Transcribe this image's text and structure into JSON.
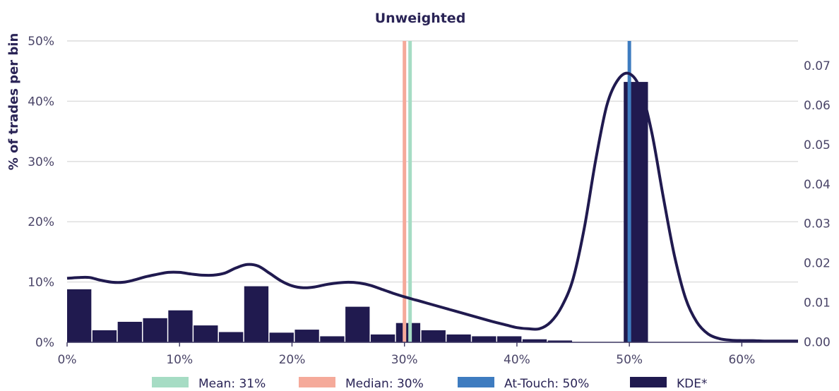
{
  "chart_data": {
    "type": "bar",
    "title": "Unweighted",
    "ylabel": "% of trades per bin",
    "xlim": [
      0,
      65
    ],
    "ylim": [
      0,
      50
    ],
    "y2lim": [
      -0.00013,
      0.0763
    ],
    "x_ticks": [
      0,
      10,
      20,
      30,
      40,
      50,
      60
    ],
    "x_tick_labels": [
      "0%",
      "10%",
      "20%",
      "30%",
      "40%",
      "50%",
      "60%"
    ],
    "y_ticks": [
      0,
      10,
      20,
      30,
      40,
      50
    ],
    "y_tick_labels": [
      "0%",
      "10%",
      "20%",
      "30%",
      "40%",
      "50%"
    ],
    "y2_ticks": [
      0,
      0.01,
      0.02,
      0.03,
      0.04,
      0.05,
      0.06,
      0.07
    ],
    "y2_tick_labels": [
      "0.00",
      "0.01",
      "0.02",
      "0.03",
      "0.04",
      "0.05",
      "0.06",
      "0.07"
    ],
    "grid": true,
    "histogram": {
      "bin_width": 2.25,
      "bin_starts": [
        0,
        2.25,
        4.5,
        6.75,
        9,
        11.25,
        13.5,
        15.75,
        18,
        20.25,
        22.5,
        24.75,
        27,
        29.25,
        31.5,
        33.75,
        36,
        38.25,
        40.5,
        42.75,
        45,
        47.25,
        49.5
      ],
      "values": [
        8.8,
        2.0,
        3.4,
        4.0,
        5.3,
        2.8,
        1.7,
        9.3,
        1.6,
        2.1,
        1.0,
        5.9,
        1.3,
        3.2,
        2.0,
        1.3,
        1.0,
        1.0,
        0.5,
        0.3,
        0,
        0,
        43.2
      ],
      "color": "#201a4f"
    },
    "kde": {
      "name": "KDE*",
      "color": "#201a4f",
      "x": [
        0,
        1,
        2,
        3,
        4,
        5,
        6,
        7,
        8,
        9,
        10,
        11,
        12,
        13,
        14,
        15,
        16,
        17,
        18,
        19,
        20,
        21,
        22,
        23,
        24,
        25,
        26,
        27,
        28,
        29,
        30,
        31,
        32,
        33,
        34,
        35,
        36,
        37,
        38,
        39,
        40,
        41,
        42,
        43,
        44,
        45,
        46,
        47,
        48,
        49,
        50,
        51,
        52,
        53,
        54,
        55,
        56,
        57,
        58,
        59,
        60,
        61,
        62,
        63,
        64,
        65
      ],
      "y": [
        0.0161,
        0.0163,
        0.0163,
        0.0156,
        0.0151,
        0.0151,
        0.0157,
        0.0165,
        0.0171,
        0.0176,
        0.0176,
        0.0172,
        0.0169,
        0.0169,
        0.0174,
        0.0187,
        0.0196,
        0.0192,
        0.0174,
        0.0155,
        0.0142,
        0.0137,
        0.0139,
        0.0145,
        0.0149,
        0.0151,
        0.0149,
        0.0143,
        0.0133,
        0.0123,
        0.0114,
        0.0106,
        0.0098,
        0.009,
        0.0082,
        0.0074,
        0.0066,
        0.0058,
        0.005,
        0.0043,
        0.0036,
        0.0033,
        0.0033,
        0.005,
        0.009,
        0.016,
        0.029,
        0.046,
        0.06,
        0.0665,
        0.068,
        0.064,
        0.053,
        0.037,
        0.022,
        0.011,
        0.005,
        0.002,
        0.0008,
        0.0004,
        0.0003,
        0.0003,
        0.0002,
        0.0002,
        0.0002,
        0.0002
      ]
    },
    "vlines": [
      {
        "name": "Mean: 31%",
        "x": 30.5,
        "color": "#a6dcc4"
      },
      {
        "name": "Median: 30%",
        "x": 30.0,
        "color": "#f5aa9a"
      },
      {
        "name": "At-Touch: 50%",
        "x": 50.0,
        "color": "#3e7cc0"
      }
    ],
    "legend": {
      "placement": "bottom",
      "entries": [
        {
          "label": "Mean: 31%",
          "color": "#a6dcc4"
        },
        {
          "label": "Median: 30%",
          "color": "#f5aa9a"
        },
        {
          "label": "At-Touch: 50%",
          "color": "#3e7cc0"
        },
        {
          "label": "KDE*",
          "color": "#201a4f"
        }
      ]
    }
  }
}
